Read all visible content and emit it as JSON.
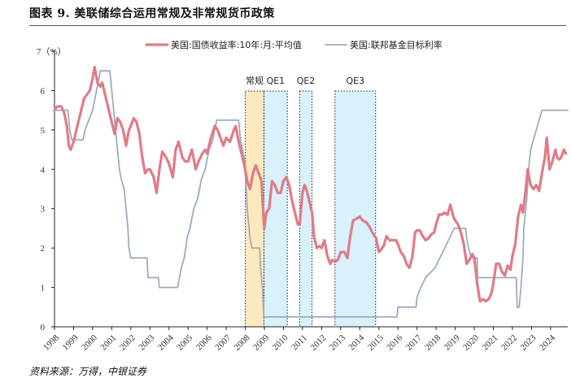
{
  "title": "图表 9. 美联储综合运用常规及非常规货币政策",
  "source": "资料来源：万得，中银证券",
  "chart_data": {
    "type": "line",
    "ylabel": "7（%）",
    "ylim": [
      0,
      7
    ],
    "yticks": [
      "0",
      "1",
      "2",
      "3",
      "4",
      "5",
      "6"
    ],
    "xlim": [
      1998,
      2024.9
    ],
    "xticks": [
      "1998",
      "1999",
      "2000",
      "2001",
      "2002",
      "2003",
      "2004",
      "2005",
      "2006",
      "2007",
      "2008",
      "2009",
      "2010",
      "2011",
      "2012",
      "2013",
      "2014",
      "2015",
      "2016",
      "2017",
      "2018",
      "2019",
      "2020",
      "2021",
      "2022",
      "2023",
      "2024"
    ],
    "legend_position": "top-center",
    "colors": {
      "treasury": "#e07b86",
      "fedfunds": "#9eabbe",
      "phase_normal_fill": "#fde9bd",
      "phase_qe_fill": "#d9f1fb"
    },
    "phases": [
      {
        "label": "常规",
        "start": 2008.0,
        "end": 2008.98,
        "kind": "normal"
      },
      {
        "label": "QE1",
        "start": 2008.98,
        "end": 2010.2,
        "kind": "qe"
      },
      {
        "label": "QE2",
        "start": 2010.85,
        "end": 2011.5,
        "kind": "qe"
      },
      {
        "label": "QE3",
        "start": 2012.7,
        "end": 2014.83,
        "kind": "qe"
      }
    ],
    "series": [
      {
        "name": "美国:国债收益率:10年:月:平均值",
        "points": [
          [
            1998.0,
            5.5
          ],
          [
            1998.15,
            5.6
          ],
          [
            1998.35,
            5.6
          ],
          [
            1998.5,
            5.45
          ],
          [
            1998.65,
            5.1
          ],
          [
            1998.75,
            4.6
          ],
          [
            1998.85,
            4.5
          ],
          [
            1999.0,
            4.7
          ],
          [
            1999.2,
            5.1
          ],
          [
            1999.4,
            5.5
          ],
          [
            1999.55,
            5.8
          ],
          [
            1999.7,
            5.9
          ],
          [
            1999.85,
            6.0
          ],
          [
            2000.0,
            6.3
          ],
          [
            2000.1,
            6.6
          ],
          [
            2000.25,
            6.2
          ],
          [
            2000.4,
            6.1
          ],
          [
            2000.5,
            6.2
          ],
          [
            2000.6,
            6.0
          ],
          [
            2000.75,
            5.7
          ],
          [
            2000.9,
            5.4
          ],
          [
            2001.0,
            5.2
          ],
          [
            2001.15,
            4.9
          ],
          [
            2001.3,
            5.3
          ],
          [
            2001.45,
            5.2
          ],
          [
            2001.6,
            5.0
          ],
          [
            2001.75,
            4.6
          ],
          [
            2001.9,
            5.0
          ],
          [
            2002.0,
            5.1
          ],
          [
            2002.15,
            5.3
          ],
          [
            2002.3,
            5.2
          ],
          [
            2002.45,
            4.9
          ],
          [
            2002.6,
            4.3
          ],
          [
            2002.75,
            3.9
          ],
          [
            2002.9,
            4.0
          ],
          [
            2003.0,
            4.0
          ],
          [
            2003.2,
            3.8
          ],
          [
            2003.35,
            3.4
          ],
          [
            2003.5,
            4.0
          ],
          [
            2003.65,
            4.45
          ],
          [
            2003.85,
            4.3
          ],
          [
            2004.0,
            4.15
          ],
          [
            2004.2,
            3.8
          ],
          [
            2004.35,
            4.5
          ],
          [
            2004.5,
            4.7
          ],
          [
            2004.7,
            4.3
          ],
          [
            2004.85,
            4.2
          ],
          [
            2005.0,
            4.2
          ],
          [
            2005.2,
            4.5
          ],
          [
            2005.4,
            4.0
          ],
          [
            2005.55,
            4.2
          ],
          [
            2005.75,
            4.4
          ],
          [
            2005.9,
            4.5
          ],
          [
            2006.0,
            4.4
          ],
          [
            2006.2,
            4.8
          ],
          [
            2006.4,
            5.1
          ],
          [
            2006.55,
            5.0
          ],
          [
            2006.7,
            4.8
          ],
          [
            2006.85,
            4.6
          ],
          [
            2007.0,
            4.8
          ],
          [
            2007.2,
            4.7
          ],
          [
            2007.4,
            5.0
          ],
          [
            2007.5,
            5.1
          ],
          [
            2007.65,
            4.7
          ],
          [
            2007.8,
            4.4
          ],
          [
            2007.95,
            4.1
          ],
          [
            2008.1,
            3.7
          ],
          [
            2008.25,
            3.5
          ],
          [
            2008.4,
            3.9
          ],
          [
            2008.55,
            4.1
          ],
          [
            2008.7,
            3.9
          ],
          [
            2008.85,
            3.7
          ],
          [
            2008.95,
            2.8
          ],
          [
            2009.0,
            2.5
          ],
          [
            2009.1,
            2.9
          ],
          [
            2009.25,
            3.0
          ],
          [
            2009.4,
            3.7
          ],
          [
            2009.55,
            3.6
          ],
          [
            2009.7,
            3.4
          ],
          [
            2009.85,
            3.4
          ],
          [
            2010.0,
            3.7
          ],
          [
            2010.15,
            3.8
          ],
          [
            2010.3,
            3.6
          ],
          [
            2010.45,
            3.2
          ],
          [
            2010.6,
            2.9
          ],
          [
            2010.75,
            2.6
          ],
          [
            2010.85,
            2.6
          ],
          [
            2011.0,
            3.4
          ],
          [
            2011.1,
            3.6
          ],
          [
            2011.2,
            3.5
          ],
          [
            2011.35,
            3.2
          ],
          [
            2011.5,
            2.9
          ],
          [
            2011.6,
            2.3
          ],
          [
            2011.75,
            2.0
          ],
          [
            2011.9,
            2.05
          ],
          [
            2012.0,
            2.0
          ],
          [
            2012.15,
            2.2
          ],
          [
            2012.3,
            1.8
          ],
          [
            2012.45,
            1.6
          ],
          [
            2012.55,
            1.7
          ],
          [
            2012.7,
            1.65
          ],
          [
            2012.85,
            1.7
          ],
          [
            2013.0,
            1.9
          ],
          [
            2013.2,
            1.9
          ],
          [
            2013.35,
            1.75
          ],
          [
            2013.5,
            2.3
          ],
          [
            2013.65,
            2.7
          ],
          [
            2013.85,
            2.75
          ],
          [
            2014.0,
            2.8
          ],
          [
            2014.15,
            2.7
          ],
          [
            2014.35,
            2.65
          ],
          [
            2014.5,
            2.55
          ],
          [
            2014.65,
            2.4
          ],
          [
            2014.85,
            2.25
          ],
          [
            2015.0,
            1.9
          ],
          [
            2015.1,
            1.95
          ],
          [
            2015.25,
            2.05
          ],
          [
            2015.4,
            2.3
          ],
          [
            2015.55,
            2.2
          ],
          [
            2015.7,
            2.2
          ],
          [
            2015.9,
            2.2
          ],
          [
            2016.0,
            2.1
          ],
          [
            2016.15,
            1.9
          ],
          [
            2016.3,
            1.8
          ],
          [
            2016.45,
            1.6
          ],
          [
            2016.6,
            1.5
          ],
          [
            2016.75,
            1.75
          ],
          [
            2016.9,
            2.4
          ],
          [
            2017.0,
            2.45
          ],
          [
            2017.15,
            2.45
          ],
          [
            2017.3,
            2.3
          ],
          [
            2017.45,
            2.2
          ],
          [
            2017.6,
            2.25
          ],
          [
            2017.75,
            2.35
          ],
          [
            2017.9,
            2.4
          ],
          [
            2018.0,
            2.6
          ],
          [
            2018.15,
            2.85
          ],
          [
            2018.3,
            2.85
          ],
          [
            2018.45,
            2.9
          ],
          [
            2018.6,
            2.85
          ],
          [
            2018.75,
            3.1
          ],
          [
            2018.9,
            2.8
          ],
          [
            2019.0,
            2.7
          ],
          [
            2019.15,
            2.6
          ],
          [
            2019.3,
            2.4
          ],
          [
            2019.45,
            2.1
          ],
          [
            2019.6,
            1.6
          ],
          [
            2019.75,
            1.7
          ],
          [
            2019.9,
            1.85
          ],
          [
            2020.0,
            1.75
          ],
          [
            2020.15,
            1.1
          ],
          [
            2020.3,
            0.65
          ],
          [
            2020.45,
            0.7
          ],
          [
            2020.6,
            0.65
          ],
          [
            2020.75,
            0.7
          ],
          [
            2020.9,
            0.85
          ],
          [
            2021.0,
            1.1
          ],
          [
            2021.15,
            1.6
          ],
          [
            2021.3,
            1.6
          ],
          [
            2021.45,
            1.4
          ],
          [
            2021.6,
            1.3
          ],
          [
            2021.75,
            1.55
          ],
          [
            2021.9,
            1.45
          ],
          [
            2022.0,
            1.8
          ],
          [
            2022.15,
            2.1
          ],
          [
            2022.3,
            2.8
          ],
          [
            2022.45,
            3.1
          ],
          [
            2022.55,
            2.9
          ],
          [
            2022.7,
            3.5
          ],
          [
            2022.8,
            4.0
          ],
          [
            2022.95,
            3.6
          ],
          [
            2023.1,
            3.5
          ],
          [
            2023.25,
            3.6
          ],
          [
            2023.4,
            3.45
          ],
          [
            2023.55,
            3.9
          ],
          [
            2023.7,
            4.3
          ],
          [
            2023.8,
            4.8
          ],
          [
            2023.95,
            4.0
          ],
          [
            2024.1,
            4.2
          ],
          [
            2024.25,
            4.5
          ],
          [
            2024.35,
            4.3
          ],
          [
            2024.45,
            4.25
          ],
          [
            2024.55,
            4.3
          ],
          [
            2024.7,
            4.5
          ],
          [
            2024.8,
            4.4
          ]
        ]
      },
      {
        "name": "美国:联邦基金目标利率",
        "points": [
          [
            1998.0,
            5.5
          ],
          [
            1998.7,
            5.5
          ],
          [
            1998.8,
            5.0
          ],
          [
            1998.9,
            4.75
          ],
          [
            1999.5,
            4.75
          ],
          [
            1999.6,
            5.0
          ],
          [
            1999.8,
            5.25
          ],
          [
            2000.0,
            5.5
          ],
          [
            2000.2,
            6.0
          ],
          [
            2000.4,
            6.5
          ],
          [
            2000.9,
            6.5
          ],
          [
            2001.0,
            6.0
          ],
          [
            2001.1,
            5.5
          ],
          [
            2001.2,
            5.0
          ],
          [
            2001.3,
            4.5
          ],
          [
            2001.4,
            4.0
          ],
          [
            2001.5,
            3.75
          ],
          [
            2001.65,
            3.5
          ],
          [
            2001.75,
            3.0
          ],
          [
            2001.85,
            2.5
          ],
          [
            2001.9,
            2.0
          ],
          [
            2002.0,
            1.75
          ],
          [
            2002.85,
            1.75
          ],
          [
            2002.9,
            1.25
          ],
          [
            2003.45,
            1.25
          ],
          [
            2003.5,
            1.0
          ],
          [
            2004.45,
            1.0
          ],
          [
            2004.55,
            1.25
          ],
          [
            2004.65,
            1.5
          ],
          [
            2004.8,
            1.75
          ],
          [
            2004.95,
            2.25
          ],
          [
            2005.1,
            2.5
          ],
          [
            2005.3,
            3.0
          ],
          [
            2005.5,
            3.25
          ],
          [
            2005.7,
            3.75
          ],
          [
            2005.9,
            4.0
          ],
          [
            2006.1,
            4.5
          ],
          [
            2006.3,
            4.75
          ],
          [
            2006.5,
            5.25
          ],
          [
            2007.65,
            5.25
          ],
          [
            2007.75,
            4.75
          ],
          [
            2007.85,
            4.5
          ],
          [
            2007.95,
            4.25
          ],
          [
            2008.05,
            3.5
          ],
          [
            2008.1,
            3.0
          ],
          [
            2008.25,
            2.25
          ],
          [
            2008.35,
            2.0
          ],
          [
            2008.75,
            2.0
          ],
          [
            2008.8,
            1.5
          ],
          [
            2008.9,
            1.0
          ],
          [
            2008.97,
            0.25
          ],
          [
            2015.95,
            0.25
          ],
          [
            2016.0,
            0.5
          ],
          [
            2016.95,
            0.5
          ],
          [
            2017.0,
            0.75
          ],
          [
            2017.2,
            1.0
          ],
          [
            2017.45,
            1.25
          ],
          [
            2017.95,
            1.5
          ],
          [
            2018.2,
            1.75
          ],
          [
            2018.45,
            2.0
          ],
          [
            2018.7,
            2.25
          ],
          [
            2018.95,
            2.5
          ],
          [
            2019.55,
            2.5
          ],
          [
            2019.6,
            2.25
          ],
          [
            2019.7,
            2.0
          ],
          [
            2019.85,
            1.75
          ],
          [
            2020.15,
            1.75
          ],
          [
            2020.18,
            1.25
          ],
          [
            2022.2,
            1.25
          ],
          [
            2022.25,
            0.5
          ],
          [
            2022.35,
            0.5
          ],
          [
            2022.45,
            1.0
          ],
          [
            2022.55,
            1.75
          ],
          [
            2022.6,
            2.5
          ],
          [
            2022.75,
            3.25
          ],
          [
            2022.85,
            4.0
          ],
          [
            2022.95,
            4.5
          ],
          [
            2023.1,
            4.75
          ],
          [
            2023.25,
            5.0
          ],
          [
            2023.4,
            5.25
          ],
          [
            2023.55,
            5.5
          ],
          [
            2024.9,
            5.5
          ]
        ]
      }
    ]
  }
}
